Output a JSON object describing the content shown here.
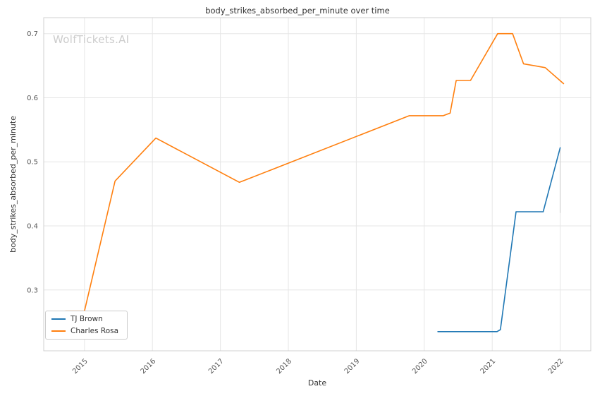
{
  "watermark": "WolfTickets.AI",
  "chart_data": {
    "type": "line",
    "title": "body_strikes_absorbed_per_minute over time",
    "xlabel": "Date",
    "ylabel": "body_strikes_absorbed_per_minute",
    "xlim": [
      2014.4,
      2022.45
    ],
    "ylim": [
      0.205,
      0.725
    ],
    "xticks": [
      2015,
      2016,
      2017,
      2018,
      2019,
      2020,
      2021,
      2022
    ],
    "yticks": [
      0.3,
      0.4,
      0.5,
      0.6,
      0.7
    ],
    "grid": true,
    "grid_color": "#e6e6e6",
    "spine_color": "#d0d0d0",
    "legend_position": "lower left",
    "series": [
      {
        "name": "TJ Brown",
        "color": "#1f77b4",
        "points": [
          [
            2020.2,
            0.235
          ],
          [
            2021.07,
            0.235
          ],
          [
            2021.12,
            0.238
          ],
          [
            2021.35,
            0.422
          ],
          [
            2021.75,
            0.422
          ],
          [
            2022.0,
            0.522
          ]
        ]
      },
      {
        "name": "Charles Rosa",
        "color": "#ff7f0e",
        "points": [
          [
            2014.72,
            0.267
          ],
          [
            2015.0,
            0.267
          ],
          [
            2015.45,
            0.47
          ],
          [
            2016.05,
            0.537
          ],
          [
            2017.28,
            0.468
          ],
          [
            2019.78,
            0.572
          ],
          [
            2020.28,
            0.572
          ],
          [
            2020.38,
            0.576
          ],
          [
            2020.47,
            0.627
          ],
          [
            2020.68,
            0.627
          ],
          [
            2021.08,
            0.7
          ],
          [
            2021.3,
            0.7
          ],
          [
            2021.46,
            0.653
          ],
          [
            2021.78,
            0.647
          ],
          [
            2022.05,
            0.622
          ]
        ]
      }
    ],
    "annotations": [
      {
        "type": "vline_segment",
        "x": 2022.0,
        "y1": 0.42,
        "y2": 0.522,
        "color": "#cccccc"
      }
    ]
  }
}
